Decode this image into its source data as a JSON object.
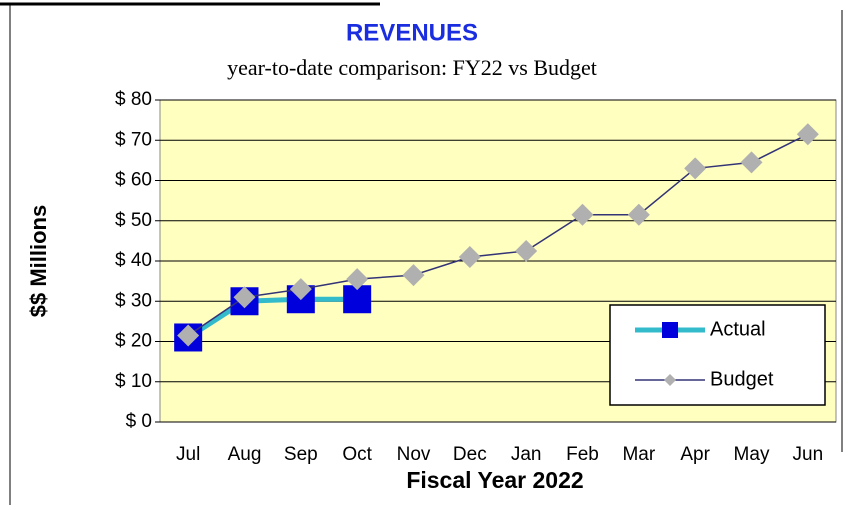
{
  "chart_data": {
    "type": "line",
    "title": "REVENUES",
    "subtitle": "year-to-date comparison: FY22 vs Budget",
    "x_label": "Fiscal Year 2022",
    "y_label": "$$ Millions",
    "categories": [
      "Jul",
      "Aug",
      "Sep",
      "Oct",
      "Nov",
      "Dec",
      "Jan",
      "Feb",
      "Mar",
      "Apr",
      "May",
      "Jun"
    ],
    "series": [
      {
        "name": "Actual",
        "color": "#33bbcc",
        "marker_color": "#0000dd",
        "marker": "square",
        "values": [
          21,
          30,
          30.5,
          30.5,
          null,
          null,
          null,
          null,
          null,
          null,
          null,
          null
        ]
      },
      {
        "name": "Budget",
        "color": "#333377",
        "marker_color": "#b0b0b0",
        "marker": "diamond",
        "values": [
          21.5,
          31,
          33,
          35.5,
          36.5,
          41,
          42.5,
          51.5,
          51.5,
          63,
          64.5,
          71.5
        ]
      }
    ],
    "ylim": [
      0,
      80
    ],
    "yticks": [
      {
        "value": 0,
        "label": "$ 0"
      },
      {
        "value": 10,
        "label": "$ 10"
      },
      {
        "value": 20,
        "label": "$ 20"
      },
      {
        "value": 30,
        "label": "$ 30"
      },
      {
        "value": 40,
        "label": "$ 40"
      },
      {
        "value": 50,
        "label": "$ 50"
      },
      {
        "value": 60,
        "label": "$ 60"
      },
      {
        "value": 70,
        "label": "$ 70"
      },
      {
        "value": 80,
        "label": "$ 80"
      }
    ],
    "grid": true,
    "legend": "lower right",
    "plot_background": "#ffffc0"
  }
}
